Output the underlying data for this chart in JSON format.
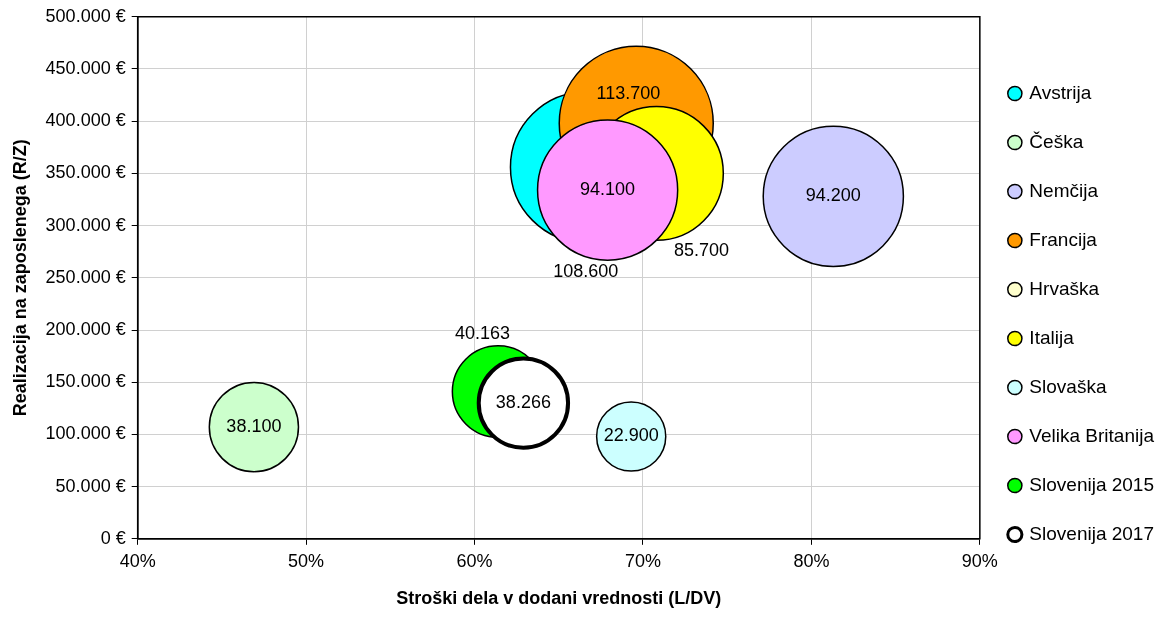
{
  "chart_data": {
    "type": "bubble",
    "xlabel": "Stroški dela v dodani vrednosti (L/DV)",
    "ylabel": "Realizacija na zaposlenega (R/Z)",
    "xlim": [
      40,
      90
    ],
    "xticks": [
      {
        "value": 40,
        "label": "40%"
      },
      {
        "value": 50,
        "label": "50%"
      },
      {
        "value": 60,
        "label": "60%"
      },
      {
        "value": 70,
        "label": "70%"
      },
      {
        "value": 80,
        "label": "80%"
      },
      {
        "value": 90,
        "label": "90%"
      }
    ],
    "ylim": [
      0,
      500000
    ],
    "yticks": [
      {
        "value": 0,
        "label": "0 €"
      },
      {
        "value": 50000,
        "label": "50.000 €"
      },
      {
        "value": 100000,
        "label": "100.000 €"
      },
      {
        "value": 150000,
        "label": "150.000 €"
      },
      {
        "value": 200000,
        "label": "200.000 €"
      },
      {
        "value": 250000,
        "label": "250.000 €"
      },
      {
        "value": 300000,
        "label": "300.000 €"
      },
      {
        "value": 350000,
        "label": "350.000 €"
      },
      {
        "value": 400000,
        "label": "400.000 €"
      },
      {
        "value": 450000,
        "label": "450.000 €"
      },
      {
        "value": 500000,
        "label": "500.000 €"
      }
    ],
    "grid": true,
    "legend": "right",
    "series": [
      {
        "name": "Avstrija",
        "color": "#00ffff",
        "x": [
          66.6
        ],
        "values": [
          356000
        ],
        "sizes": [
          108600
        ],
        "value_labels": [
          "108.600"
        ]
      },
      {
        "name": "Češka",
        "color": "#ccffcc",
        "x": [
          46.9
        ],
        "values": [
          107000
        ],
        "sizes": [
          38100
        ],
        "value_labels": [
          "38.100"
        ]
      },
      {
        "name": "Nemčija",
        "color": "#ccccff",
        "x": [
          81.3
        ],
        "values": [
          328000
        ],
        "sizes": [
          94200
        ],
        "value_labels": [
          "94.200"
        ]
      },
      {
        "name": "Francija",
        "color": "#ff9900",
        "x": [
          69.6
        ],
        "values": [
          398000
        ],
        "sizes": [
          113700
        ],
        "value_labels": [
          "113.700"
        ]
      },
      {
        "name": "Hrvaška",
        "color": "#ffffcc"
      },
      {
        "name": "Italija",
        "color": "#ffff00",
        "x": [
          70.8
        ],
        "values": [
          350000
        ],
        "sizes": [
          85700
        ],
        "value_labels": [
          "85.700"
        ]
      },
      {
        "name": "Slovaška",
        "color": "#ccffff",
        "x": [
          69.3
        ],
        "values": [
          98000
        ],
        "sizes": [
          22900
        ],
        "value_labels": [
          "22.900"
        ]
      },
      {
        "name": "Velika Britanija",
        "color": "#ff99ff",
        "x": [
          67.9
        ],
        "values": [
          334000
        ],
        "sizes": [
          94100
        ],
        "value_labels": [
          "94.100"
        ]
      },
      {
        "name": "Slovenija 2015",
        "color": "#00ff00",
        "x": [
          61.4
        ],
        "values": [
          141000
        ],
        "sizes": [
          40163
        ],
        "value_labels": [
          "40.163"
        ]
      },
      {
        "name": "Slovenija 2017",
        "color": "#ffffff",
        "x": [
          62.9
        ],
        "values": [
          130000
        ],
        "sizes": [
          38266
        ],
        "value_labels": [
          "38.266"
        ]
      }
    ]
  }
}
